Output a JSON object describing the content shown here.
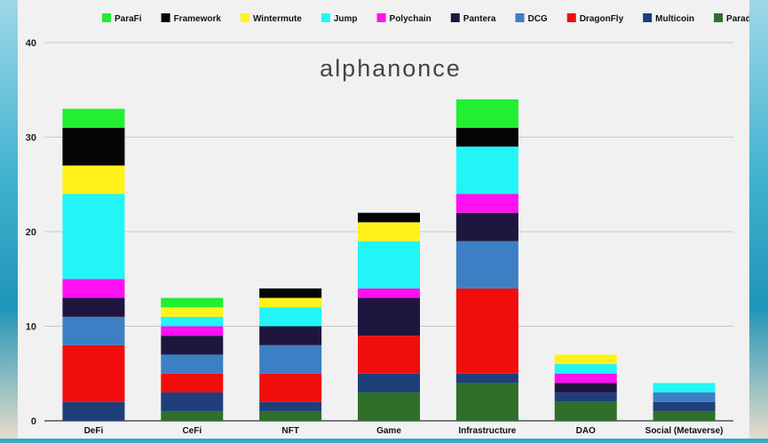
{
  "brand": {
    "watermark": "alphanonce"
  },
  "chart_data": {
    "type": "bar",
    "stacked": true,
    "title": "",
    "xlabel": "",
    "ylabel": "",
    "ylim": [
      0,
      40
    ],
    "yticks": [
      0,
      10,
      20,
      30,
      40
    ],
    "grid": true,
    "legend_position": "top",
    "categories": [
      "DeFi",
      "CeFi",
      "NFT",
      "Game",
      "Infrastructure",
      "DAO",
      "Social (Metaverse)"
    ],
    "series": [
      {
        "name": "Paradigm",
        "color": "#2f6f2a",
        "values": [
          0,
          1,
          1,
          3,
          4,
          2,
          1
        ]
      },
      {
        "name": "Multicoin",
        "color": "#1f3f7a",
        "values": [
          2,
          2,
          1,
          2,
          1,
          1,
          1
        ]
      },
      {
        "name": "DragonFly",
        "color": "#f20d0d",
        "values": [
          6,
          2,
          3,
          4,
          9,
          0,
          0
        ]
      },
      {
        "name": "DCG",
        "color": "#3d7fc4",
        "values": [
          3,
          2,
          3,
          0,
          5,
          0,
          1
        ]
      },
      {
        "name": "Pantera",
        "color": "#1f1640",
        "values": [
          2,
          2,
          2,
          4,
          3,
          1,
          0
        ]
      },
      {
        "name": "Polychain",
        "color": "#ff10f0",
        "values": [
          2,
          1,
          0,
          1,
          2,
          1,
          0
        ]
      },
      {
        "name": "Jump",
        "color": "#22f5f5",
        "values": [
          9,
          1,
          2,
          5,
          5,
          1,
          1
        ]
      },
      {
        "name": "Wintermute",
        "color": "#fff21a",
        "values": [
          3,
          1,
          1,
          2,
          0,
          1,
          0
        ]
      },
      {
        "name": "Framework",
        "color": "#050505",
        "values": [
          4,
          0,
          1,
          1,
          2,
          0,
          0
        ]
      },
      {
        "name": "ParaFi",
        "color": "#22ee33",
        "values": [
          2,
          1,
          0,
          0,
          3,
          0,
          0
        ]
      }
    ],
    "legend_order": [
      "ParaFi",
      "Framework",
      "Wintermute",
      "Jump",
      "Polychain",
      "Pantera",
      "DCG",
      "DragonFly",
      "Multicoin",
      "Paradigm"
    ]
  }
}
